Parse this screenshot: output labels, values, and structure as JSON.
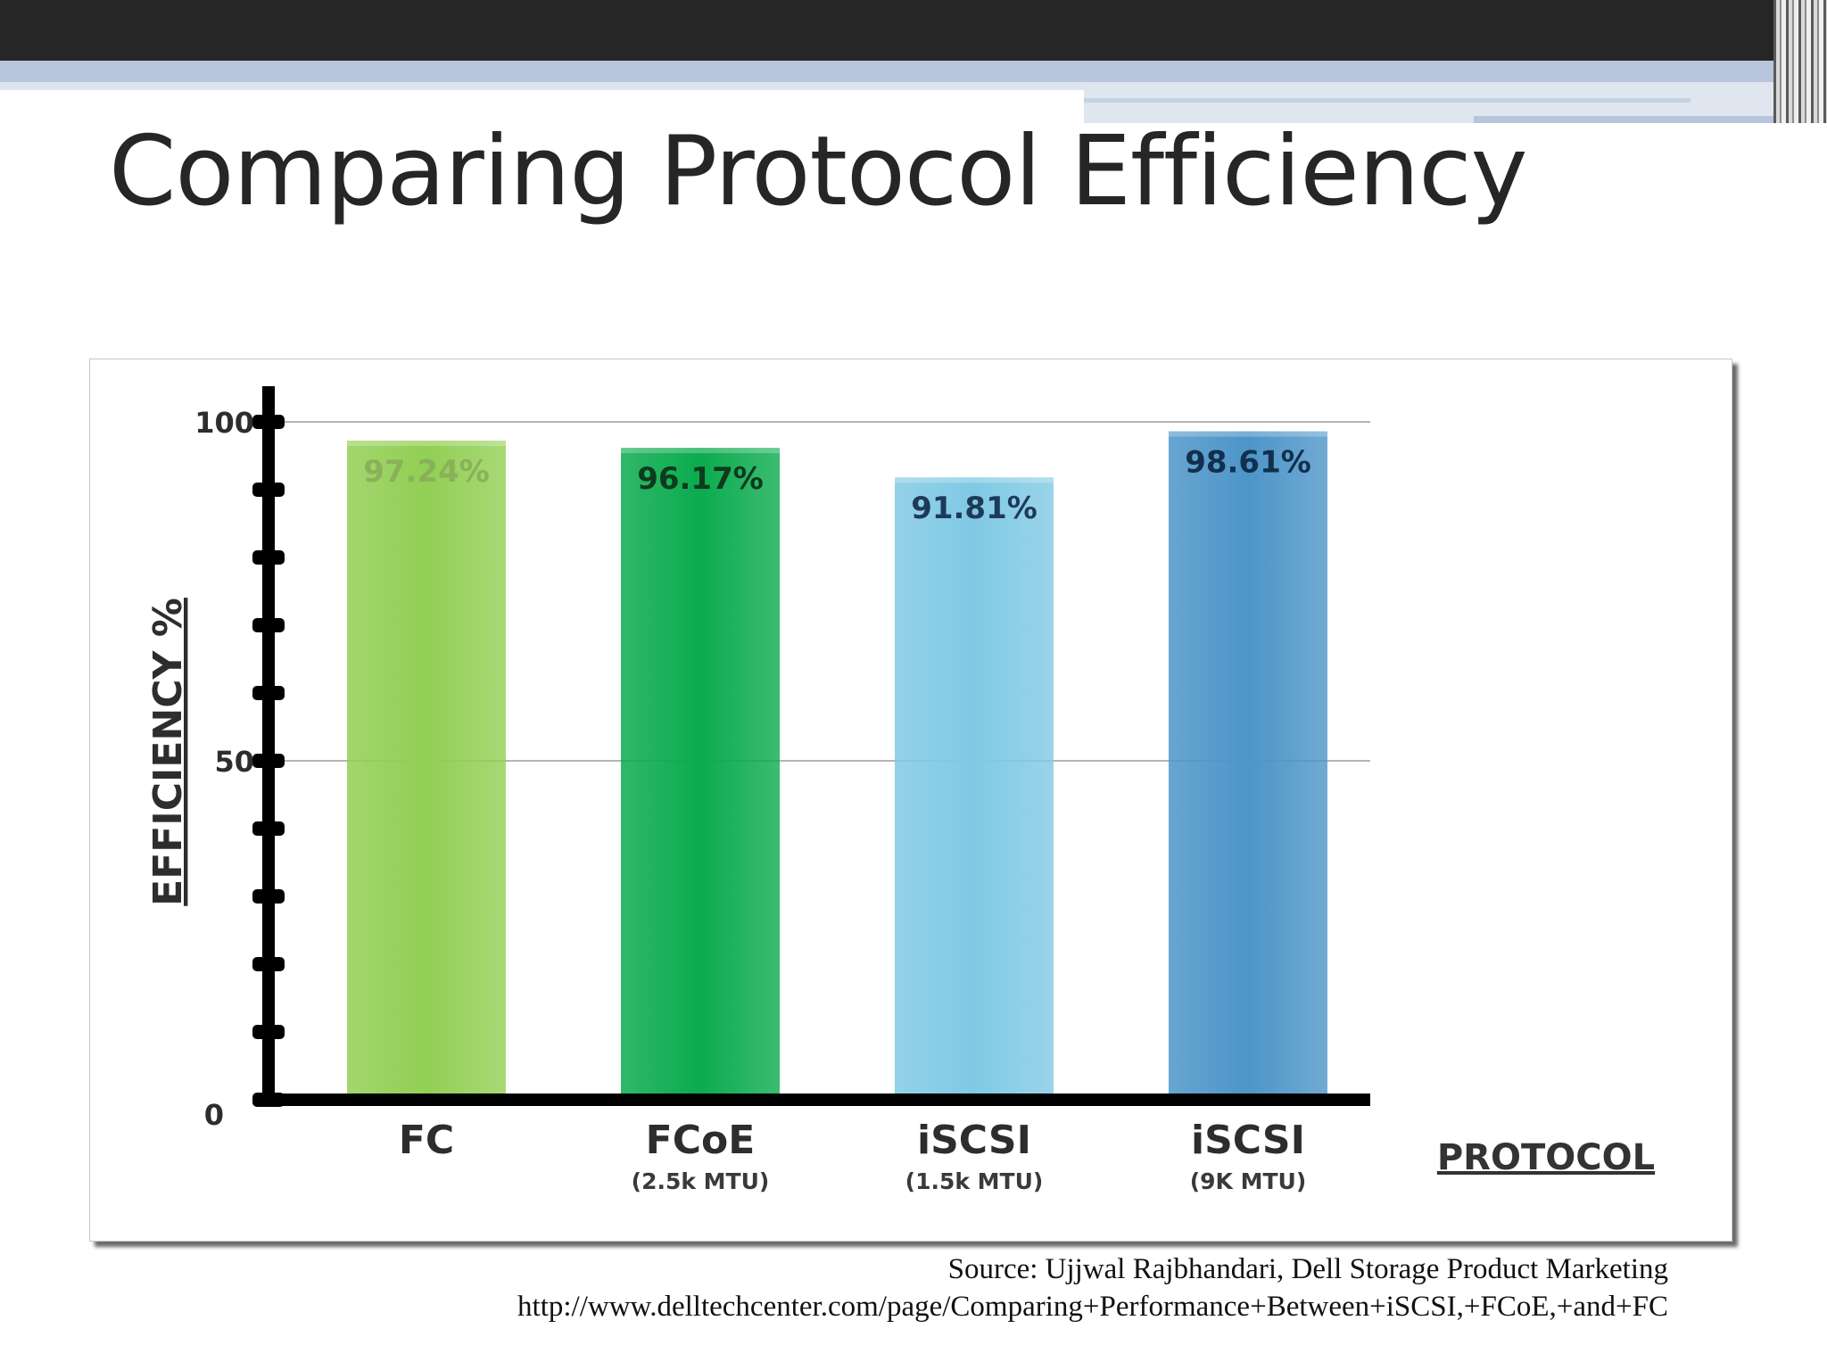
{
  "slide": {
    "title": "Comparing Protocol Efficiency",
    "source_line": "Source: Ujjwal Rajbhandari, Dell Storage Product Marketing",
    "source_url": "http://www.delltechcenter.com/page/Comparing+Performance+Between+iSCSI,+FCoE,+and+FC"
  },
  "chart_data": {
    "type": "bar",
    "categories": [
      "FC",
      "FCoE",
      "iSCSI",
      "iSCSI"
    ],
    "subcategories": [
      "",
      "(2.5k MTU)",
      "(1.5k MTU)",
      "(9K MTU)"
    ],
    "values": [
      97.24,
      96.17,
      91.81,
      98.61
    ],
    "value_labels": [
      "97.24%",
      "96.17%",
      "91.81%",
      "98.61%"
    ],
    "ylabel": "EFFICIENCY %",
    "xlabel": "PROTOCOL",
    "ylim": [
      0,
      100
    ],
    "yticks": [
      0,
      50,
      100
    ],
    "grid": true,
    "bar_colors": [
      "#92cf54",
      "#0bab4e",
      "#80c9e4",
      "#4d95c8"
    ],
    "label_colors": [
      "#8bb05a",
      "#0e3a1e",
      "#1e3a5a",
      "#12304e"
    ]
  }
}
